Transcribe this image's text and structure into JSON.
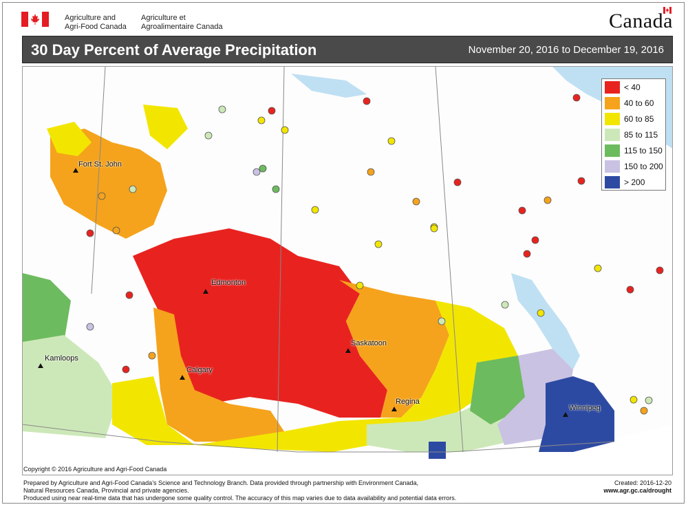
{
  "header": {
    "org_en_line1": "Agriculture and",
    "org_en_line2": "Agri-Food Canada",
    "org_fr_line1": "Agriculture et",
    "org_fr_line2": "Agroalimentaire Canada",
    "wordmark": "Canada"
  },
  "title": "30 Day Percent of Average Precipitation",
  "date_range": "November 20, 2016 to December 19, 2016",
  "colors": {
    "lt40": "#e8231f",
    "40to60": "#f5a31c",
    "60to85": "#f2e600",
    "85to115": "#cde8b8",
    "115to150": "#6dbb5f",
    "150to200": "#c9c2e2",
    "gt200": "#2d4aa3",
    "water": "#bfe0f3"
  },
  "legend": [
    {
      "label": "< 40",
      "color": "#e8231f"
    },
    {
      "label": "40 to 60",
      "color": "#f5a31c"
    },
    {
      "label": "60 to 85",
      "color": "#f2e600"
    },
    {
      "label": "85 to 115",
      "color": "#cde8b8"
    },
    {
      "label": "115 to 150",
      "color": "#6dbb5f"
    },
    {
      "label": "150 to 200",
      "color": "#c9c2e2"
    },
    {
      "label": "> 200",
      "color": "#2d4aa3"
    }
  ],
  "cities": {
    "fort_st_john": "Fort St. John",
    "edmonton": "Edmonton",
    "kamloops": "Kamloops",
    "calgary": "Calgary",
    "saskatoon": "Saskatoon",
    "regina": "Regina",
    "winnipeg": "Winnipeg"
  },
  "copyright": "Copyright © 2016 Agriculture and Agri-Food Canada",
  "footer": {
    "line1": "Prepared by Agriculture and Agri-Food Canada’s Science and Technology Branch. Data provided through partnership with Environment Canada,",
    "line2": "Natural Resources Canada, Provincial and private agencies.",
    "line3": "Produced using near real-time data that has undergone some quality control. The accuracy of this map varies due to data availability and potential data errors."
  },
  "created": "Created: 2016-12-20",
  "url": "www.agr.gc.ca/drought"
}
